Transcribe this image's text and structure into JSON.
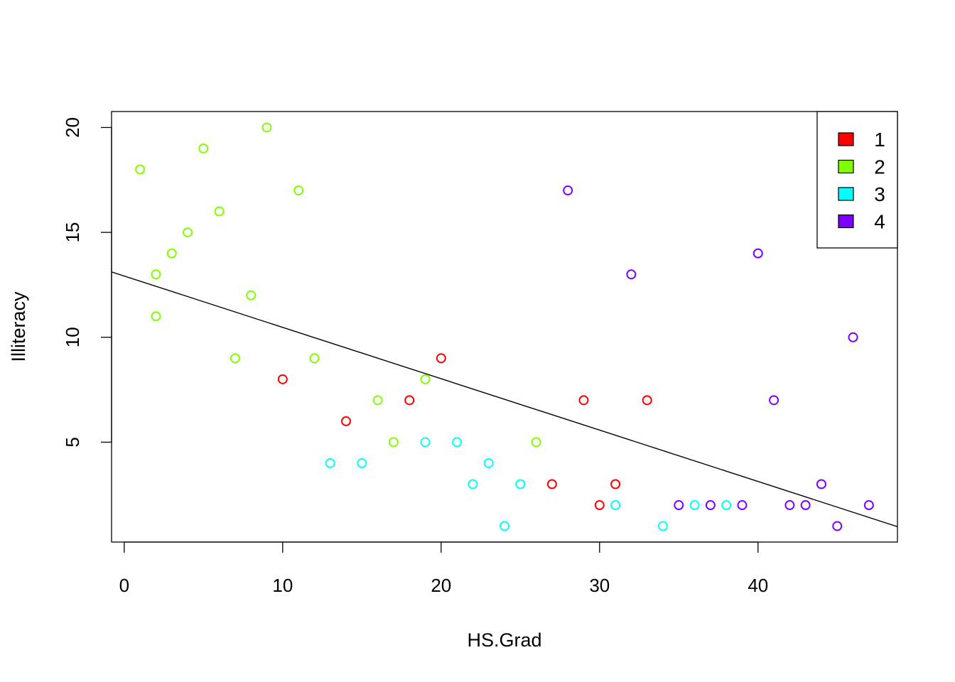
{
  "chart_data": {
    "type": "scatter",
    "xlabel": "HS.Grad",
    "ylabel": "Illiteracy",
    "xlim": [
      -0.8,
      48.8
    ],
    "ylim": [
      0.24,
      20.76
    ],
    "xticks": [
      0,
      10,
      20,
      30,
      40
    ],
    "yticks": [
      5,
      10,
      15,
      20
    ],
    "grid": false,
    "legend": {
      "position": "top-right",
      "entries": [
        {
          "label": "1",
          "color": "#FF0000"
        },
        {
          "label": "2",
          "color": "#80FF00"
        },
        {
          "label": "3",
          "color": "#00FFFF"
        },
        {
          "label": "4",
          "color": "#8000FF"
        }
      ]
    },
    "regression_line": {
      "intercept": 12.92,
      "slope": -0.2448
    },
    "series": [
      {
        "name": "1",
        "color": "#FF0000",
        "x": [
          10,
          14,
          18,
          20,
          27,
          29,
          30,
          31,
          33
        ],
        "y": [
          8,
          6,
          7,
          9,
          3,
          7,
          2,
          3,
          7
        ]
      },
      {
        "name": "2",
        "color": "#80FF00",
        "x": [
          1,
          2,
          2,
          3,
          4,
          5,
          6,
          7,
          8,
          9,
          11,
          12,
          16,
          17,
          19,
          26
        ],
        "y": [
          18,
          13,
          11,
          14,
          15,
          19,
          16,
          9,
          12,
          20,
          17,
          9,
          7,
          5,
          8,
          5
        ]
      },
      {
        "name": "3",
        "color": "#00FFFF",
        "x": [
          13,
          15,
          19,
          21,
          22,
          23,
          24,
          25,
          31,
          34,
          36,
          38
        ],
        "y": [
          4,
          4,
          5,
          5,
          3,
          4,
          1,
          3,
          2,
          1,
          2,
          2
        ]
      },
      {
        "name": "4",
        "color": "#8000FF",
        "x": [
          28,
          32,
          35,
          37,
          39,
          40,
          41,
          42,
          43,
          44,
          45,
          46,
          47
        ],
        "y": [
          17,
          13,
          2,
          2,
          2,
          14,
          7,
          2,
          2,
          3,
          1,
          10,
          2
        ]
      }
    ]
  }
}
